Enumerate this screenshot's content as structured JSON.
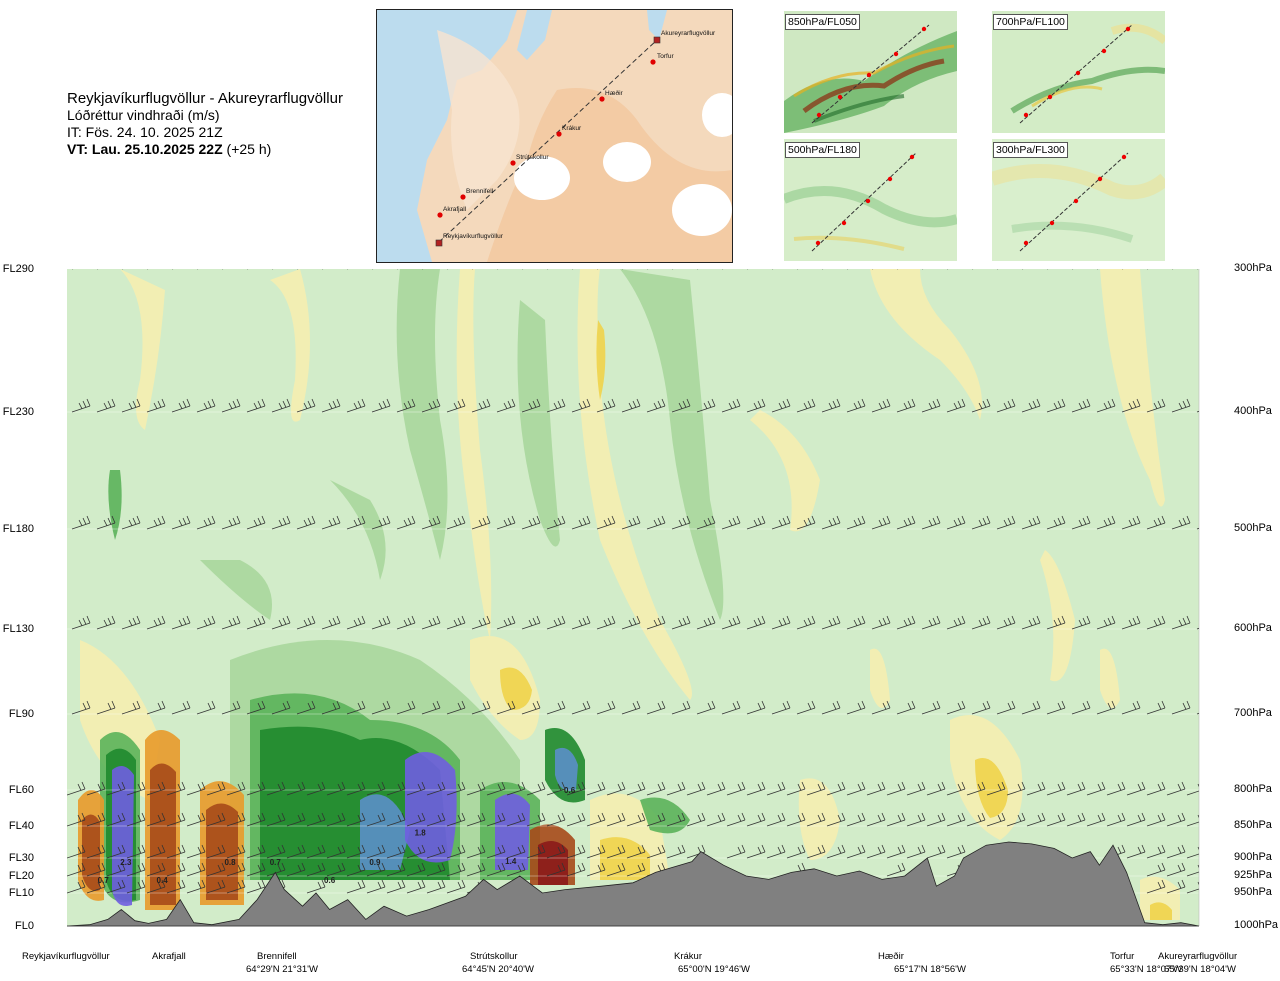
{
  "header": {
    "route": "Reykjavíkurflugvöllur - Akureyrarflugvöllur",
    "variable": "Lóðréttur vindhraði (m/s)",
    "issue_time": "IT: Fös. 24. 10. 2025 21Z",
    "valid_time": "VT: Lau. 25.10.2025 22Z",
    "valid_hours": "(+25 h)"
  },
  "map": {
    "places": [
      "Akureyrarflugvöllur",
      "Torfur",
      "Hæðir",
      "Krákur",
      "Strútskollur",
      "Brennifell",
      "Akrafjall",
      "Reykjavíkurflugvöllur"
    ]
  },
  "insets": [
    {
      "label": "850hPa/FL050"
    },
    {
      "label": "700hPa/FL100"
    },
    {
      "label": "500hPa/FL180"
    },
    {
      "label": "300hPa/FL300"
    }
  ],
  "chart_data": {
    "type": "heatmap",
    "title": "Reykjavíkurflugvöllur - Akureyrarflugvöllur",
    "subtitle": "Lóðréttur vindhraði (m/s)",
    "xlabel": "",
    "ylabel": "",
    "left_axis_flight_levels": [
      "FL290",
      "FL230",
      "FL180",
      "FL130",
      "FL90",
      "FL60",
      "FL40",
      "FL30",
      "FL20",
      "FL10",
      "FL0"
    ],
    "right_axis_pressure_levels": [
      "300hPa",
      "400hPa",
      "500hPa",
      "600hPa",
      "700hPa",
      "800hPa",
      "850hPa",
      "900hPa",
      "925hPa",
      "950hPa",
      "1000hPa"
    ],
    "pressure_hpa": [
      300,
      400,
      500,
      600,
      700,
      800,
      850,
      900,
      925,
      950,
      1000
    ],
    "ylim_hpa": [
      1000,
      300
    ],
    "xlim_km": [
      0,
      250
    ],
    "locations": [
      {
        "name": "Reykjavíkurflugvöllur",
        "coord": "",
        "km": 0
      },
      {
        "name": "Akrafjall",
        "coord": "",
        "km": 20
      },
      {
        "name": "Brennifell",
        "coord": "64°29'N 21°31'W",
        "km": 45
      },
      {
        "name": "Strútskollur",
        "coord": "64°45'N 20°40'W",
        "km": 96
      },
      {
        "name": "Krákur",
        "coord": "65°00'N 19°46'W",
        "km": 140
      },
      {
        "name": "Hæðir",
        "coord": "65°17'N 18°56'W",
        "km": 188
      },
      {
        "name": "Torfur",
        "coord": "65°33'N 18°07'W",
        "km": 232
      },
      {
        "name": "Akureyrarflugvöllur",
        "coord": "65°39'N 18°04'W",
        "km": 250
      }
    ],
    "value_annotations": [
      {
        "text": "0.7",
        "km": 8,
        "hpa": 935
      },
      {
        "text": "2.3",
        "km": 13,
        "hpa": 910
      },
      {
        "text": "0.4",
        "km": 21,
        "hpa": 935
      },
      {
        "text": "0.8",
        "km": 36,
        "hpa": 910
      },
      {
        "text": "0.7",
        "km": 46,
        "hpa": 910
      },
      {
        "text": "0.6",
        "km": 58,
        "hpa": 935
      },
      {
        "text": "0.9",
        "km": 68,
        "hpa": 910
      },
      {
        "text": "1.8",
        "km": 78,
        "hpa": 865
      },
      {
        "text": "1.4",
        "km": 98,
        "hpa": 908
      },
      {
        "text": "0.6",
        "km": 111,
        "hpa": 804
      }
    ],
    "colors": {
      "weak_down": "#d9efcf",
      "down_1": "#a9d79c",
      "down_2": "#5bb35a",
      "down_3": "#1f8a2e",
      "down_4": "#5b8fc8",
      "down_5": "#6f5ee0",
      "up_1": "#f5eeb0",
      "up_2": "#f0d34a",
      "up_3": "#e89a2a",
      "up_4": "#a64a1a",
      "up_5": "#8b1a1a",
      "terrain": "#808080",
      "background": "#d2ecc9"
    }
  }
}
